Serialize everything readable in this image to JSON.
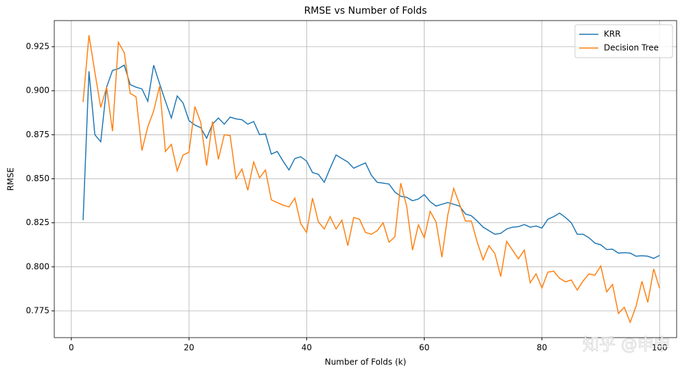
{
  "chart_data": {
    "type": "line",
    "title": "RMSE vs Number of Folds",
    "x_label": "Number of Folds (k)",
    "y_label": "RMSE",
    "watermark": "知乎 @申申",
    "x": [
      2,
      3,
      4,
      5,
      6,
      7,
      8,
      9,
      10,
      11,
      12,
      13,
      14,
      15,
      16,
      17,
      18,
      19,
      20,
      21,
      22,
      23,
      24,
      25,
      26,
      27,
      28,
      29,
      30,
      31,
      32,
      33,
      34,
      35,
      36,
      37,
      38,
      39,
      40,
      41,
      42,
      43,
      44,
      45,
      46,
      47,
      48,
      49,
      50,
      51,
      52,
      53,
      54,
      55,
      56,
      57,
      58,
      59,
      60,
      61,
      62,
      63,
      64,
      65,
      66,
      67,
      68,
      69,
      70,
      71,
      72,
      73,
      74,
      75,
      76,
      77,
      78,
      79,
      80,
      81,
      82,
      83,
      84,
      85,
      86,
      87,
      88,
      89,
      90,
      91,
      92,
      93,
      94,
      95,
      96,
      97,
      98,
      99,
      100
    ],
    "series": [
      {
        "name": "KRR",
        "color": "#1f77b4",
        "values": [
          0.8265,
          0.911,
          0.875,
          0.871,
          0.902,
          0.9115,
          0.9125,
          0.9145,
          0.9035,
          0.902,
          0.901,
          0.894,
          0.9145,
          0.904,
          0.894,
          0.8845,
          0.897,
          0.893,
          0.883,
          0.8805,
          0.879,
          0.873,
          0.881,
          0.8845,
          0.881,
          0.885,
          0.884,
          0.8835,
          0.881,
          0.8825,
          0.875,
          0.8755,
          0.864,
          0.8655,
          0.86,
          0.855,
          0.8615,
          0.8625,
          0.86,
          0.8535,
          0.8525,
          0.848,
          0.856,
          0.8635,
          0.8615,
          0.8595,
          0.856,
          0.8575,
          0.859,
          0.852,
          0.848,
          0.8475,
          0.847,
          0.8425,
          0.84,
          0.8395,
          0.8375,
          0.8385,
          0.841,
          0.837,
          0.8345,
          0.8355,
          0.8365,
          0.8355,
          0.8345,
          0.83,
          0.829,
          0.826,
          0.8225,
          0.8205,
          0.8185,
          0.819,
          0.8215,
          0.8225,
          0.8228,
          0.824,
          0.8225,
          0.8232,
          0.822,
          0.827,
          0.8285,
          0.8305,
          0.828,
          0.825,
          0.8185,
          0.8185,
          0.8165,
          0.8135,
          0.8125,
          0.8098,
          0.81,
          0.8078,
          0.808,
          0.8078,
          0.806,
          0.8063,
          0.806,
          0.8048,
          0.8065
        ]
      },
      {
        "name": "Decision Tree",
        "color": "#ff7f0e",
        "values": [
          0.8935,
          0.9315,
          0.9105,
          0.8905,
          0.902,
          0.877,
          0.9275,
          0.9215,
          0.8985,
          0.8965,
          0.866,
          0.8795,
          0.8885,
          0.9025,
          0.8655,
          0.8695,
          0.8545,
          0.8635,
          0.865,
          0.891,
          0.882,
          0.8575,
          0.8825,
          0.861,
          0.875,
          0.8745,
          0.85,
          0.8555,
          0.8435,
          0.8595,
          0.8505,
          0.855,
          0.838,
          0.8365,
          0.835,
          0.834,
          0.839,
          0.8245,
          0.8195,
          0.839,
          0.8255,
          0.8215,
          0.8285,
          0.8215,
          0.8265,
          0.812,
          0.828,
          0.827,
          0.8195,
          0.8185,
          0.8205,
          0.825,
          0.814,
          0.817,
          0.8475,
          0.8345,
          0.8095,
          0.8238,
          0.8165,
          0.8315,
          0.8255,
          0.8055,
          0.8295,
          0.8445,
          0.8355,
          0.826,
          0.826,
          0.814,
          0.804,
          0.812,
          0.8075,
          0.7945,
          0.8145,
          0.8095,
          0.8045,
          0.8095,
          0.791,
          0.796,
          0.788,
          0.797,
          0.7975,
          0.7935,
          0.7915,
          0.7925,
          0.7868,
          0.792,
          0.796,
          0.7952,
          0.8005,
          0.7858,
          0.79,
          0.7735,
          0.777,
          0.7685,
          0.7775,
          0.7918,
          0.7798,
          0.7988,
          0.7878
        ]
      }
    ],
    "xlim": [
      -2.9,
      102.9
    ],
    "ylim": [
      0.7598,
      0.9398
    ],
    "xticks": [
      0,
      20,
      40,
      60,
      80,
      100
    ],
    "yticks": [
      0.775,
      {
        "value": 0.8,
        "label": "0.800"
      },
      0.825,
      {
        "value": 0.85,
        "label": "0.850"
      },
      0.875,
      {
        "value": 0.9,
        "label": "0.900"
      },
      0.925
    ],
    "grid": true,
    "legend": "upper right"
  }
}
